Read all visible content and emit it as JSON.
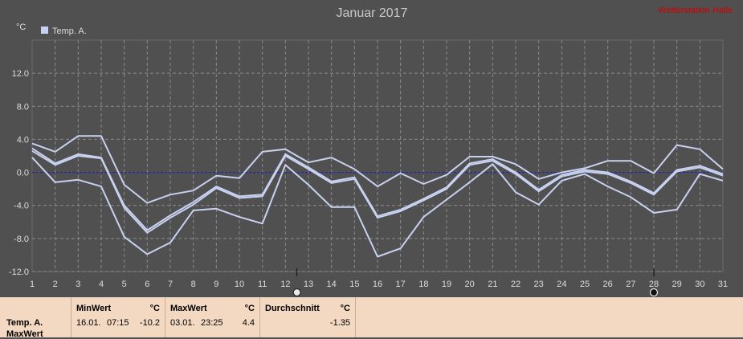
{
  "chart_data": {
    "type": "line",
    "title": "Januar 2017",
    "watermark": "Wetterstation Halle",
    "ylabel": "°C",
    "legend": "Temp. A.",
    "ylim": [
      -12,
      16
    ],
    "yticks": [
      12.0,
      8.0,
      4.0,
      0.0,
      -4.0,
      -8.0,
      -12.0
    ],
    "ytick_labels": [
      "12.0",
      "8.0",
      "4.0",
      "0.0",
      "-4.0",
      "-8.0",
      "-12.0"
    ],
    "x": [
      1,
      2,
      3,
      4,
      5,
      6,
      7,
      8,
      9,
      10,
      11,
      12,
      13,
      14,
      15,
      16,
      17,
      18,
      19,
      20,
      21,
      22,
      23,
      24,
      25,
      26,
      27,
      28,
      29,
      30,
      31
    ],
    "grid": true,
    "zero_line": true,
    "markers": [
      {
        "day": 12.5,
        "label": "moon-full"
      },
      {
        "day": 28,
        "label": "moon-new"
      }
    ],
    "series": [
      {
        "role": "max",
        "values": [
          3.5,
          2.5,
          4.4,
          4.4,
          -1.5,
          -3.7,
          -2.7,
          -2.2,
          -0.4,
          -0.7,
          2.5,
          2.8,
          1.2,
          1.8,
          0.4,
          -1.7,
          -0.1,
          -1.4,
          -0.3,
          1.9,
          1.9,
          1.0,
          -0.8,
          0.0,
          0.5,
          1.4,
          1.4,
          -0.1,
          3.3,
          2.8,
          0.4
        ]
      },
      {
        "role": "avg",
        "values": [
          2.6,
          0.9,
          2.0,
          1.7,
          -4.3,
          -7.3,
          -5.5,
          -3.9,
          -1.9,
          -3.1,
          -2.9,
          2.0,
          0.4,
          -1.3,
          -0.8,
          -5.5,
          -4.7,
          -3.4,
          -2.0,
          0.9,
          1.4,
          -0.2,
          -2.3,
          -0.5,
          0.1,
          -0.2,
          -1.3,
          -2.7,
          0.1,
          0.6,
          -0.4
        ]
      },
      {
        "role": "avg-b",
        "values": [
          2.9,
          1.1,
          2.2,
          1.8,
          -4.0,
          -7.0,
          -5.2,
          -3.6,
          -1.7,
          -2.9,
          -2.7,
          2.2,
          0.6,
          -1.1,
          -0.6,
          -5.3,
          -4.5,
          -3.2,
          -1.8,
          1.1,
          1.6,
          0.0,
          -2.1,
          -0.3,
          0.3,
          0.0,
          -1.1,
          -2.5,
          0.3,
          0.8,
          -0.2
        ]
      },
      {
        "role": "min",
        "values": [
          1.8,
          -1.2,
          -0.9,
          -1.7,
          -7.8,
          -9.9,
          -8.5,
          -4.6,
          -4.4,
          -5.4,
          -6.2,
          0.9,
          -1.5,
          -4.2,
          -4.2,
          -10.2,
          -9.2,
          -5.4,
          -3.3,
          -1.2,
          1.0,
          -2.4,
          -3.9,
          -1.0,
          -0.2,
          -1.7,
          -3.0,
          -4.9,
          -4.5,
          -0.2,
          -1.0
        ]
      }
    ]
  },
  "footer": {
    "row_labels": [
      "Temp. A.",
      "MaxWert"
    ],
    "min": {
      "header": "MinWert",
      "unit": "°C",
      "date": "16.01.",
      "time": "07:15",
      "value": "-10.2"
    },
    "max": {
      "header": "MaxWert",
      "unit": "°C",
      "date": "03.01.",
      "time": "23:25",
      "value": "4.4"
    },
    "avg": {
      "header": "Durchschnitt",
      "unit": "°C",
      "value": "-1.35"
    }
  },
  "colors": {
    "bg": "#505050",
    "line": "#c8d2f0",
    "grid": "#8a8a8a",
    "zero": "#1a1acc",
    "axis_text": "#dcdcdc",
    "title": "#c8c8c8",
    "watermark": "#d00000",
    "footer_bg": "#f3d9c2"
  }
}
